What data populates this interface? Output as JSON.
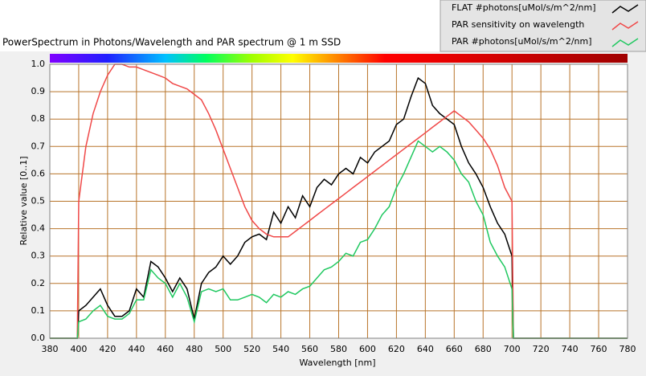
{
  "chart_data": {
    "type": "line",
    "title": "PowerSpectrum in Photons/Wavelength and PAR spectrum @ 1 m SSD",
    "x_label": "Wavelength [nm]",
    "y_label": "Relative value [0..1]",
    "xlim": [
      380,
      780
    ],
    "ylim": [
      0,
      1
    ],
    "xticks": [
      380,
      400,
      420,
      440,
      460,
      480,
      500,
      520,
      540,
      560,
      580,
      600,
      620,
      640,
      660,
      680,
      700,
      720,
      740,
      760,
      780
    ],
    "yticks": [
      {
        "value": 0,
        "label": "0.0"
      },
      0.1,
      0.2,
      0.3,
      0.4,
      0.5,
      0.6,
      0.7,
      0.8,
      0.9,
      {
        "value": 1,
        "label": "1.0"
      }
    ],
    "grid": true,
    "legend": "top-right",
    "x": [
      380,
      399,
      400,
      405,
      410,
      415,
      420,
      425,
      430,
      435,
      440,
      445,
      450,
      455,
      460,
      465,
      470,
      475,
      480,
      485,
      490,
      495,
      500,
      505,
      510,
      515,
      520,
      525,
      530,
      535,
      540,
      545,
      550,
      555,
      560,
      565,
      570,
      575,
      580,
      585,
      590,
      595,
      600,
      605,
      610,
      615,
      620,
      625,
      630,
      635,
      640,
      645,
      650,
      655,
      660,
      665,
      670,
      675,
      680,
      685,
      690,
      695,
      700,
      701,
      780
    ],
    "series": [
      {
        "name": "FLAT #photons[uMol/s/m^2/nm]",
        "color": "#000000",
        "values": [
          0,
          0,
          0.1,
          0.12,
          0.15,
          0.18,
          0.12,
          0.08,
          0.08,
          0.1,
          0.18,
          0.15,
          0.28,
          0.26,
          0.22,
          0.17,
          0.22,
          0.18,
          0.07,
          0.2,
          0.24,
          0.26,
          0.3,
          0.27,
          0.3,
          0.35,
          0.37,
          0.38,
          0.36,
          0.46,
          0.42,
          0.48,
          0.44,
          0.52,
          0.48,
          0.55,
          0.58,
          0.56,
          0.6,
          0.62,
          0.6,
          0.66,
          0.64,
          0.68,
          0.7,
          0.72,
          0.78,
          0.8,
          0.88,
          0.95,
          0.93,
          0.85,
          0.82,
          0.8,
          0.78,
          0.7,
          0.64,
          0.6,
          0.55,
          0.48,
          0.42,
          0.38,
          0.3,
          0,
          0
        ]
      },
      {
        "name": "PAR sensitivity on wavelength",
        "color": "#f04848",
        "values": [
          0,
          0,
          0.5,
          0.7,
          0.82,
          0.9,
          0.96,
          1.0,
          1.0,
          0.99,
          0.99,
          0.98,
          0.97,
          0.96,
          0.95,
          0.93,
          0.92,
          0.91,
          0.89,
          0.87,
          0.82,
          0.76,
          0.69,
          0.62,
          0.55,
          0.48,
          0.43,
          0.4,
          0.38,
          0.37,
          0.37,
          0.37,
          0.39,
          0.41,
          0.43,
          0.45,
          0.47,
          0.49,
          0.51,
          0.53,
          0.55,
          0.57,
          0.59,
          0.61,
          0.63,
          0.65,
          0.67,
          0.69,
          0.71,
          0.73,
          0.75,
          0.77,
          0.79,
          0.81,
          0.83,
          0.81,
          0.79,
          0.76,
          0.73,
          0.69,
          0.63,
          0.55,
          0.5,
          0,
          0
        ]
      },
      {
        "name": "PAR #photons[uMol/s/m^2/nm]",
        "color": "#20c860",
        "values": [
          0,
          0,
          0.06,
          0.07,
          0.1,
          0.12,
          0.08,
          0.07,
          0.07,
          0.09,
          0.14,
          0.14,
          0.25,
          0.22,
          0.2,
          0.15,
          0.2,
          0.15,
          0.06,
          0.17,
          0.18,
          0.17,
          0.18,
          0.14,
          0.14,
          0.15,
          0.16,
          0.15,
          0.13,
          0.16,
          0.15,
          0.17,
          0.16,
          0.18,
          0.19,
          0.22,
          0.25,
          0.26,
          0.28,
          0.31,
          0.3,
          0.35,
          0.36,
          0.4,
          0.45,
          0.48,
          0.55,
          0.6,
          0.66,
          0.72,
          0.7,
          0.68,
          0.7,
          0.68,
          0.65,
          0.6,
          0.57,
          0.5,
          0.45,
          0.35,
          0.3,
          0.26,
          0.18,
          0,
          0
        ]
      }
    ]
  }
}
